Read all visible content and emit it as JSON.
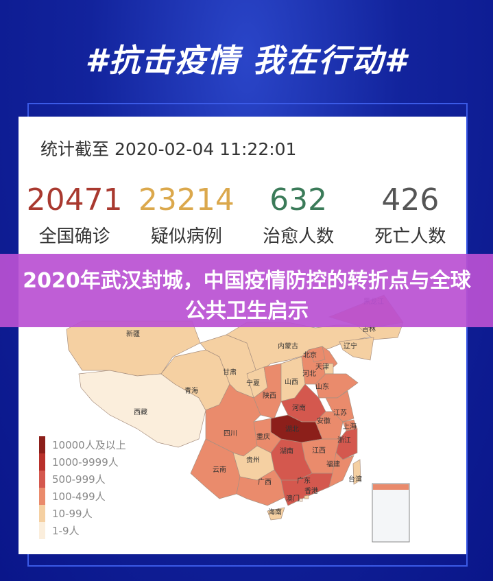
{
  "header": {
    "title": "#抗击疫情 我在行动#"
  },
  "card": {
    "timestamp": "统计截至 2020-02-04 11:22:01",
    "stats": [
      {
        "value": "20471",
        "label": "全国确诊",
        "color": "#a9392f"
      },
      {
        "value": "23214",
        "label": "疑似病例",
        "color": "#dba84c"
      },
      {
        "value": "632",
        "label": "治愈人数",
        "color": "#3b7b59"
      },
      {
        "value": "426",
        "label": "死亡人数",
        "color": "#555555"
      }
    ]
  },
  "banner": {
    "title": "2020年武汉封城，中国疫情防控的转折点与全球公共卫生启示"
  },
  "legend": [
    {
      "label": "10000人及以上",
      "color": "#8c1f1a"
    },
    {
      "label": "1000-9999人",
      "color": "#b8302a"
    },
    {
      "label": "500-999人",
      "color": "#d4584e"
    },
    {
      "label": "100-499人",
      "color": "#ea8b6c"
    },
    {
      "label": "10-99人",
      "color": "#f5d0a2"
    },
    {
      "label": "1-9人",
      "color": "#fbeedc"
    }
  ],
  "map": {
    "provinces": [
      {
        "name": "新疆",
        "level": 4
      },
      {
        "name": "西藏",
        "level": 5
      },
      {
        "name": "青海",
        "level": 4
      },
      {
        "name": "甘肃",
        "level": 4
      },
      {
        "name": "内蒙古",
        "level": 4
      },
      {
        "name": "黑龙江",
        "level": 3
      },
      {
        "name": "吉林",
        "level": 4
      },
      {
        "name": "辽宁",
        "level": 4
      },
      {
        "name": "宁夏",
        "level": 4
      },
      {
        "name": "陕西",
        "level": 3
      },
      {
        "name": "山西",
        "level": 4
      },
      {
        "name": "河北",
        "level": 3
      },
      {
        "name": "北京",
        "level": 3
      },
      {
        "name": "天津",
        "level": 4
      },
      {
        "name": "山东",
        "level": 3
      },
      {
        "name": "河南",
        "level": 2
      },
      {
        "name": "江苏",
        "level": 3
      },
      {
        "name": "安徽",
        "level": 3
      },
      {
        "name": "上海",
        "level": 3
      },
      {
        "name": "湖北",
        "level": 0
      },
      {
        "name": "重庆",
        "level": 3
      },
      {
        "name": "四川",
        "level": 3
      },
      {
        "name": "浙江",
        "level": 2
      },
      {
        "name": "江西",
        "level": 3
      },
      {
        "name": "湖南",
        "level": 2
      },
      {
        "name": "贵州",
        "level": 4
      },
      {
        "name": "云南",
        "level": 3
      },
      {
        "name": "广西",
        "level": 3
      },
      {
        "name": "广东",
        "level": 2
      },
      {
        "name": "福建",
        "level": 3
      },
      {
        "name": "海南",
        "level": 4
      },
      {
        "name": "台湾",
        "level": 4
      },
      {
        "name": "香港",
        "level": 4
      },
      {
        "name": "澳门",
        "level": 5
      }
    ]
  }
}
